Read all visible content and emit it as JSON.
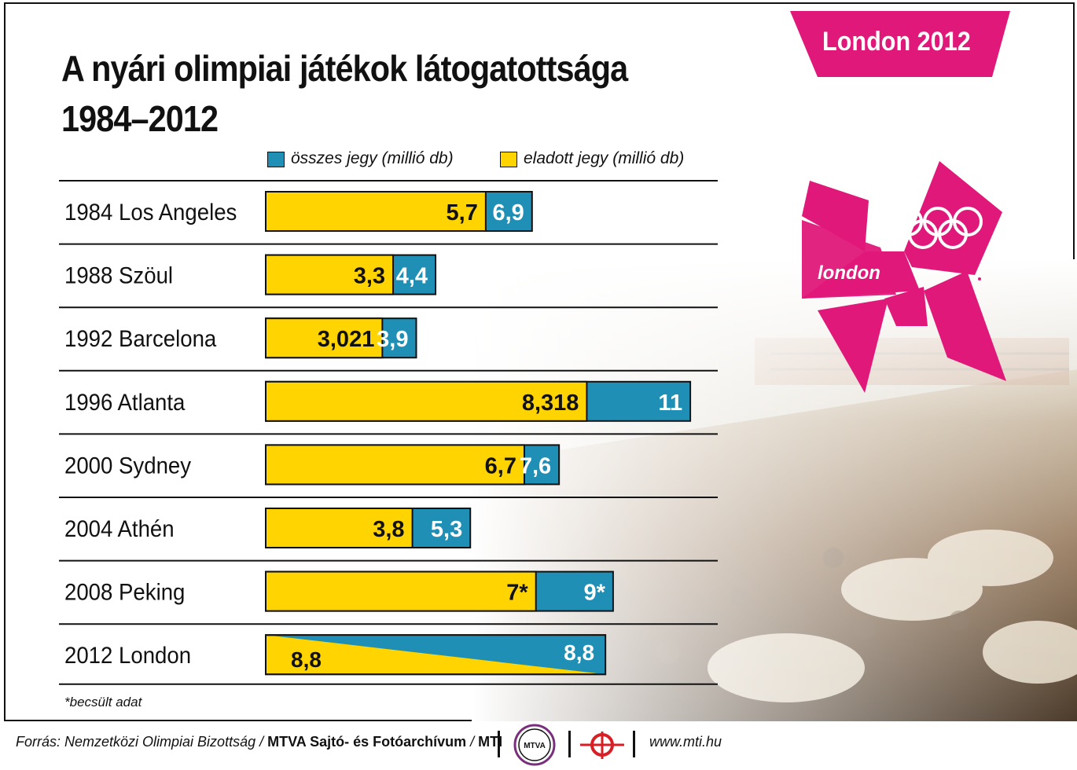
{
  "title_line1": "A nyári olimpiai játékok látogatottsága",
  "title_line2": "1984–2012",
  "banner": "London 2012",
  "logo_text": "london",
  "legend": [
    {
      "label": "összes jegy (millió db)",
      "color": "#1f8fb5"
    },
    {
      "label": "eladott jegy (millió db)",
      "color": "#ffd400"
    }
  ],
  "chart_data": {
    "type": "bar",
    "orientation": "horizontal",
    "categories": [
      "1984 Los Angeles",
      "1988 Szöul",
      "1992 Barcelona",
      "1996 Atlanta",
      "2000 Sydney",
      "2004 Athén",
      "2008 Peking",
      "2012 London"
    ],
    "rows": [
      {
        "year": "1984",
        "city": "Los Angeles",
        "sold": 5.7,
        "total": 6.9,
        "sold_label": "5,7",
        "total_label": "6,9"
      },
      {
        "year": "1988",
        "city": "Szöul",
        "sold": 3.3,
        "total": 4.4,
        "sold_label": "3,3",
        "total_label": "4,4"
      },
      {
        "year": "1992",
        "city": "Barcelona",
        "sold": 3.021,
        "total": 3.9,
        "sold_label": "3,021",
        "total_label": "3,9"
      },
      {
        "year": "1996",
        "city": "Atlanta",
        "sold": 8.318,
        "total": 11,
        "sold_label": "8,318",
        "total_label": "11"
      },
      {
        "year": "2000",
        "city": "Sydney",
        "sold": 6.7,
        "total": 7.6,
        "sold_label": "6,7",
        "total_label": "7,6"
      },
      {
        "year": "2004",
        "city": "Athén",
        "sold": 3.8,
        "total": 5.3,
        "sold_label": "3,8",
        "total_label": "5,3"
      },
      {
        "year": "2008",
        "city": "Peking",
        "sold": 7,
        "total": 9,
        "sold_label": "7*",
        "total_label": "9*"
      },
      {
        "year": "2012",
        "city": "London",
        "sold": 8.8,
        "total": 8.8,
        "sold_label": "8,8",
        "total_label": "8,8"
      }
    ],
    "series": [
      {
        "name": "összes jegy (millió db)",
        "key": "total",
        "color": "#1f8fb5"
      },
      {
        "name": "eladott jegy (millió db)",
        "key": "sold",
        "color": "#ffd400"
      }
    ],
    "xlim": [
      0,
      11
    ],
    "grid": false
  },
  "footnote": "*becsült adat",
  "footer": {
    "source_prefix": "Forrás: Nemzetközi Olimpiai Bizottság / ",
    "source_archive": "MTVA Sajtó- és Fotóarchívum",
    "source_sep": " / ",
    "source_mti": "MTI",
    "badge": "MTVA",
    "url": "www.mti.hu"
  }
}
